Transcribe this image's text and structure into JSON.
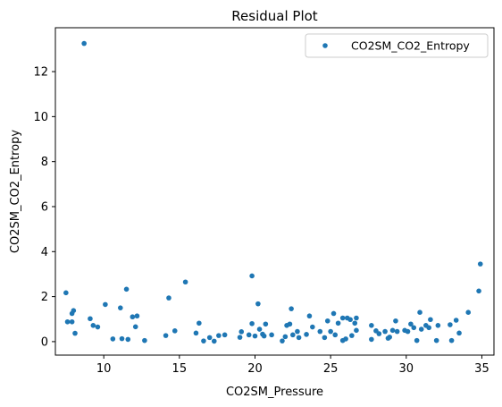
{
  "chart_data": {
    "type": "scatter",
    "title": "Residual Plot",
    "xlabel": "CO2SM_Pressure",
    "ylabel": "CO2SM_CO2_Entropy",
    "xlim": [
      6.8,
      35.8
    ],
    "ylim": [
      -0.6,
      13.95
    ],
    "xticks": [
      10,
      15,
      20,
      25,
      30,
      35
    ],
    "yticks": [
      0,
      2,
      4,
      6,
      8,
      10,
      12
    ],
    "grid": false,
    "legend_position": "top-right",
    "series": [
      {
        "name": "CO2SM_CO2_Entropy",
        "color": "#1f77b4",
        "points": [
          [
            7.5,
            2.17
          ],
          [
            7.6,
            0.88
          ],
          [
            7.9,
            1.25
          ],
          [
            8.0,
            1.38
          ],
          [
            7.9,
            0.88
          ],
          [
            8.1,
            0.37
          ],
          [
            8.7,
            13.25
          ],
          [
            9.1,
            1.02
          ],
          [
            9.3,
            0.72
          ],
          [
            9.6,
            0.65
          ],
          [
            10.1,
            1.65
          ],
          [
            10.6,
            0.12
          ],
          [
            11.1,
            1.5
          ],
          [
            11.2,
            0.13
          ],
          [
            11.5,
            2.33
          ],
          [
            11.6,
            0.1
          ],
          [
            11.9,
            1.1
          ],
          [
            12.1,
            0.66
          ],
          [
            12.2,
            1.14
          ],
          [
            12.7,
            0.05
          ],
          [
            14.1,
            0.27
          ],
          [
            14.3,
            1.94
          ],
          [
            14.7,
            0.48
          ],
          [
            15.4,
            2.65
          ],
          [
            16.1,
            0.38
          ],
          [
            16.3,
            0.82
          ],
          [
            16.6,
            0.03
          ],
          [
            17.0,
            0.18
          ],
          [
            17.3,
            0.02
          ],
          [
            17.6,
            0.27
          ],
          [
            18.0,
            0.3
          ],
          [
            19.0,
            0.19
          ],
          [
            19.1,
            0.44
          ],
          [
            19.6,
            0.3
          ],
          [
            19.8,
            0.8
          ],
          [
            19.8,
            2.92
          ],
          [
            20.0,
            0.25
          ],
          [
            20.2,
            1.68
          ],
          [
            20.3,
            0.55
          ],
          [
            20.5,
            0.33
          ],
          [
            20.6,
            0.25
          ],
          [
            20.7,
            0.78
          ],
          [
            21.1,
            0.3
          ],
          [
            21.8,
            0.03
          ],
          [
            22.0,
            0.22
          ],
          [
            22.1,
            0.72
          ],
          [
            22.3,
            0.78
          ],
          [
            22.4,
            1.46
          ],
          [
            22.5,
            0.3
          ],
          [
            22.8,
            0.45
          ],
          [
            22.9,
            0.18
          ],
          [
            23.4,
            0.32
          ],
          [
            23.6,
            1.14
          ],
          [
            23.8,
            0.65
          ],
          [
            24.3,
            0.45
          ],
          [
            24.6,
            0.18
          ],
          [
            24.8,
            0.92
          ],
          [
            25.0,
            0.45
          ],
          [
            25.2,
            1.25
          ],
          [
            25.3,
            0.3
          ],
          [
            25.5,
            0.82
          ],
          [
            25.8,
            1.05
          ],
          [
            25.8,
            0.05
          ],
          [
            26.0,
            0.12
          ],
          [
            26.1,
            1.05
          ],
          [
            26.3,
            0.98
          ],
          [
            26.4,
            0.27
          ],
          [
            26.6,
            0.82
          ],
          [
            26.7,
            1.05
          ],
          [
            26.7,
            0.5
          ],
          [
            27.7,
            0.72
          ],
          [
            27.7,
            0.1
          ],
          [
            28.0,
            0.48
          ],
          [
            28.2,
            0.35
          ],
          [
            28.6,
            0.45
          ],
          [
            28.8,
            0.15
          ],
          [
            28.9,
            0.2
          ],
          [
            29.1,
            0.5
          ],
          [
            29.3,
            0.92
          ],
          [
            29.4,
            0.45
          ],
          [
            29.9,
            0.5
          ],
          [
            30.1,
            0.45
          ],
          [
            30.3,
            0.78
          ],
          [
            30.5,
            0.62
          ],
          [
            30.7,
            0.05
          ],
          [
            30.9,
            1.3
          ],
          [
            31.0,
            0.55
          ],
          [
            31.3,
            0.72
          ],
          [
            31.5,
            0.62
          ],
          [
            31.6,
            0.98
          ],
          [
            32.0,
            0.05
          ],
          [
            32.1,
            0.72
          ],
          [
            32.9,
            0.75
          ],
          [
            33.0,
            0.05
          ],
          [
            33.3,
            0.95
          ],
          [
            33.5,
            0.38
          ],
          [
            34.1,
            1.3
          ],
          [
            34.8,
            2.25
          ],
          [
            34.9,
            3.45
          ]
        ]
      }
    ]
  }
}
